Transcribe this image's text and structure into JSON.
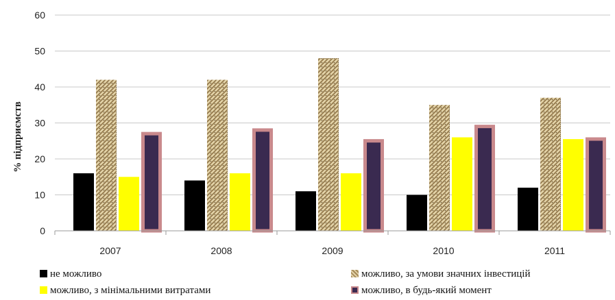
{
  "chart_data": {
    "type": "bar",
    "categories": [
      "2007",
      "2008",
      "2009",
      "2010",
      "2011"
    ],
    "series": [
      {
        "name": "не можливо",
        "values": [
          16,
          14,
          11,
          10,
          12
        ],
        "color": "#000000"
      },
      {
        "name": "можливо, за умови значних інвестицій",
        "values": [
          42,
          42,
          48,
          35,
          37
        ],
        "color": "#b49a68",
        "pattern": "wicker"
      },
      {
        "name": "можливо, з мінімальними витратами",
        "values": [
          15,
          16,
          16,
          26,
          25.5
        ],
        "color": "#ffff00"
      },
      {
        "name": "можливо, в будь-який момент",
        "values": [
          27.5,
          28.5,
          25.5,
          29.5,
          26
        ],
        "color": "#3a2a50",
        "outline": "#c9898c"
      }
    ],
    "yticks": [
      "0",
      "10",
      "20",
      "30",
      "40",
      "50",
      "60"
    ],
    "ylim": [
      0,
      60
    ],
    "ylabel": "% підприємств",
    "xlabel": "",
    "title": "",
    "grid": true,
    "legend_position": "bottom"
  }
}
